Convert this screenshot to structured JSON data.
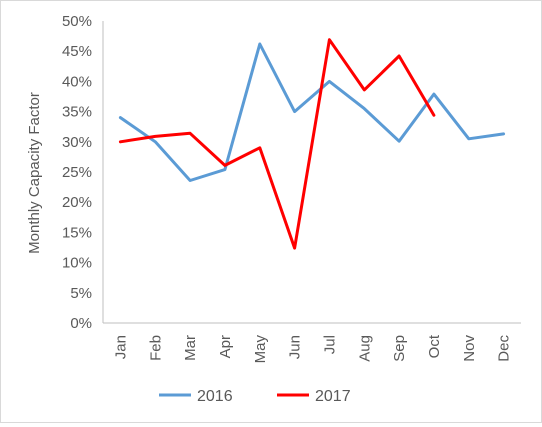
{
  "chart_data": {
    "type": "line",
    "categories": [
      "Jan",
      "Feb",
      "Mar",
      "Apr",
      "May",
      "Jun",
      "Jul",
      "Aug",
      "Sep",
      "Oct",
      "Nov",
      "Dec"
    ],
    "series": [
      {
        "name": "2016",
        "color": "#5b9bd5",
        "values": [
          34.0,
          30.0,
          23.6,
          25.4,
          46.2,
          35.0,
          40.0,
          35.5,
          30.1,
          37.9,
          30.5,
          31.3
        ]
      },
      {
        "name": "2017",
        "color": "#ff0000",
        "values": [
          30.0,
          30.9,
          31.4,
          26.1,
          29.0,
          12.4,
          46.9,
          38.6,
          44.2,
          34.4,
          null,
          null
        ]
      }
    ],
    "ylabel": "Monthly Capacity Factor",
    "xlabel": "",
    "ylim": [
      0,
      50
    ],
    "yticks": [
      "0%",
      "5%",
      "10%",
      "15%",
      "20%",
      "25%",
      "30%",
      "35%",
      "40%",
      "45%",
      "50%"
    ],
    "grid": false,
    "legend": "bottom"
  }
}
